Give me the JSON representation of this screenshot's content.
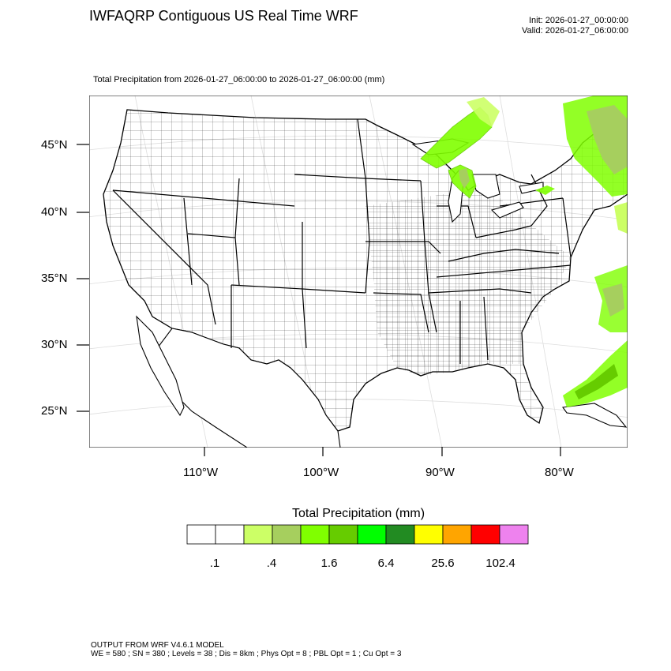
{
  "header": {
    "title": "IWFAQRP Contiguous US Real Time WRF",
    "init": "Init: 2026-01-27_00:00:00",
    "valid": "Valid: 2026-01-27_06:00:00",
    "subtitle": "Total Precipitation from 2026-01-27_06:00:00 to 2026-01-27_06:00:00   (mm)"
  },
  "map": {
    "lat_labels": [
      "45°N",
      "40°N",
      "35°N",
      "30°N",
      "25°N"
    ],
    "lon_labels": [
      "110°W",
      "100°W",
      "90°W",
      "80°W"
    ]
  },
  "colorbar": {
    "title": "Total Precipitation  (mm)",
    "colors": [
      "#ffffff",
      "#ffffff",
      "#ccff66",
      "#a6cf5e",
      "#80ff00",
      "#66cc00",
      "#00ff00",
      "#228b22",
      "#ffff00",
      "#ffa500",
      "#ff0000",
      "#ee82ee"
    ],
    "labels": [
      ".1",
      ".4",
      "1.6",
      "6.4",
      "25.6",
      "102.4"
    ]
  },
  "footer": {
    "line1": "OUTPUT FROM WRF V4.6.1 MODEL",
    "line2": "WE = 580 ; SN = 380 ; Levels = 38 ; Dis = 8km ; Phys Opt = 8 ; PBL Opt = 1 ; Cu Opt = 3"
  }
}
